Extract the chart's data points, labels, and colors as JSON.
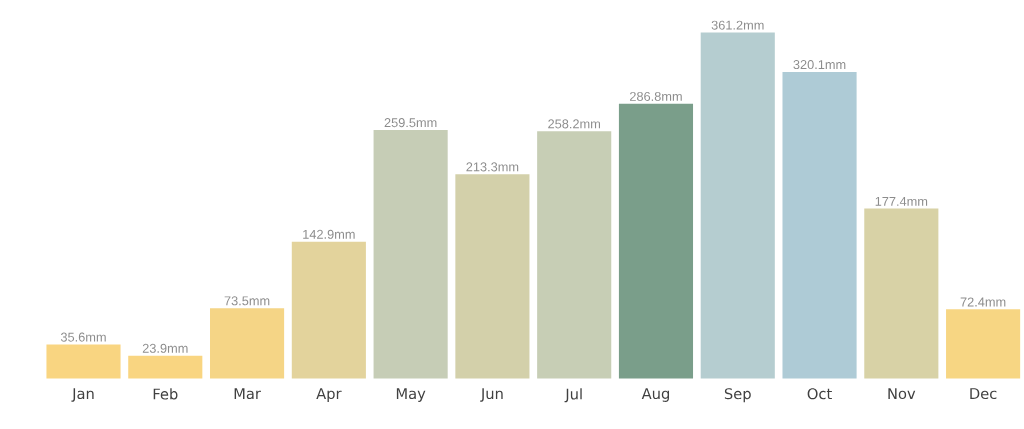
{
  "chart_data": {
    "type": "bar",
    "categories": [
      "Jan",
      "Feb",
      "Mar",
      "Apr",
      "May",
      "Jun",
      "Jul",
      "Aug",
      "Sep",
      "Oct",
      "Nov",
      "Dec"
    ],
    "values": [
      35.6,
      23.9,
      73.5,
      142.9,
      259.5,
      213.3,
      258.2,
      286.8,
      361.2,
      320.1,
      177.4,
      72.4
    ],
    "value_labels": [
      "35.6mm",
      "23.9mm",
      "73.5mm",
      "142.9mm",
      "259.5mm",
      "213.3mm",
      "258.2mm",
      "286.8mm",
      "361.2mm",
      "320.1mm",
      "177.4mm",
      "72.4mm"
    ],
    "colors": [
      "#f9d581",
      "#f9d581",
      "#f5d586",
      "#e3d39c",
      "#c6cdb6",
      "#d3d0aa",
      "#c7ceb5",
      "#7a9e8a",
      "#b5cdd0",
      "#aecbd6",
      "#d8d2a6",
      "#f7d683"
    ]
  }
}
